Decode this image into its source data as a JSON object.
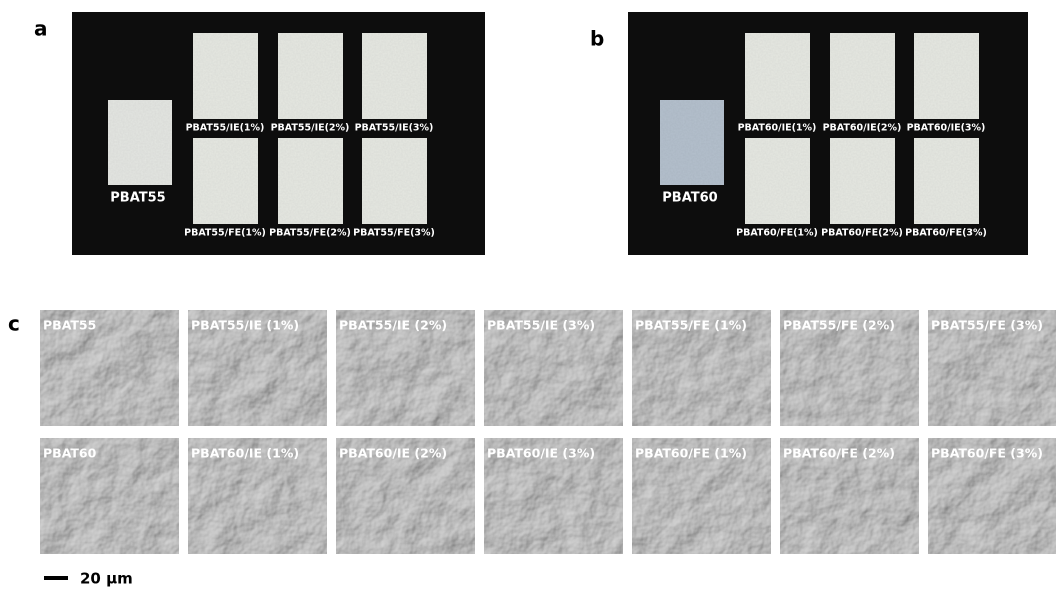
{
  "panel_a": {
    "letter": "a",
    "control": "PBAT55",
    "samples": [
      [
        "PBAT55/IE(1%)",
        "PBAT55/IE(2%)",
        "PBAT55/IE(3%)"
      ],
      [
        "PBAT55/FE(1%)",
        "PBAT55/FE(2%)",
        "PBAT55/FE(3%)"
      ]
    ]
  },
  "panel_b": {
    "letter": "b",
    "control": "PBAT60",
    "samples": [
      [
        "PBAT60/IE(1%)",
        "PBAT60/IE(2%)",
        "PBAT60/IE(3%)"
      ],
      [
        "PBAT60/FE(1%)",
        "PBAT60/FE(2%)",
        "PBAT60/FE(3%)"
      ]
    ]
  },
  "panel_c": {
    "letter": "c",
    "rows": [
      [
        "PBAT55",
        "PBAT55/IE (1%)",
        "PBAT55/IE (2%)",
        "PBAT55/IE (3%)",
        "PBAT55/FE (1%)",
        "PBAT55/FE (2%)",
        "PBAT55/FE (3%)"
      ],
      [
        "PBAT60",
        "PBAT60/IE (1%)",
        "PBAT60/IE (2%)",
        "PBAT60/IE (3%)",
        "PBAT60/FE (1%)",
        "PBAT60/FE (2%)",
        "PBAT60/FE (3%)"
      ]
    ],
    "scale_bar": "20 μm"
  }
}
